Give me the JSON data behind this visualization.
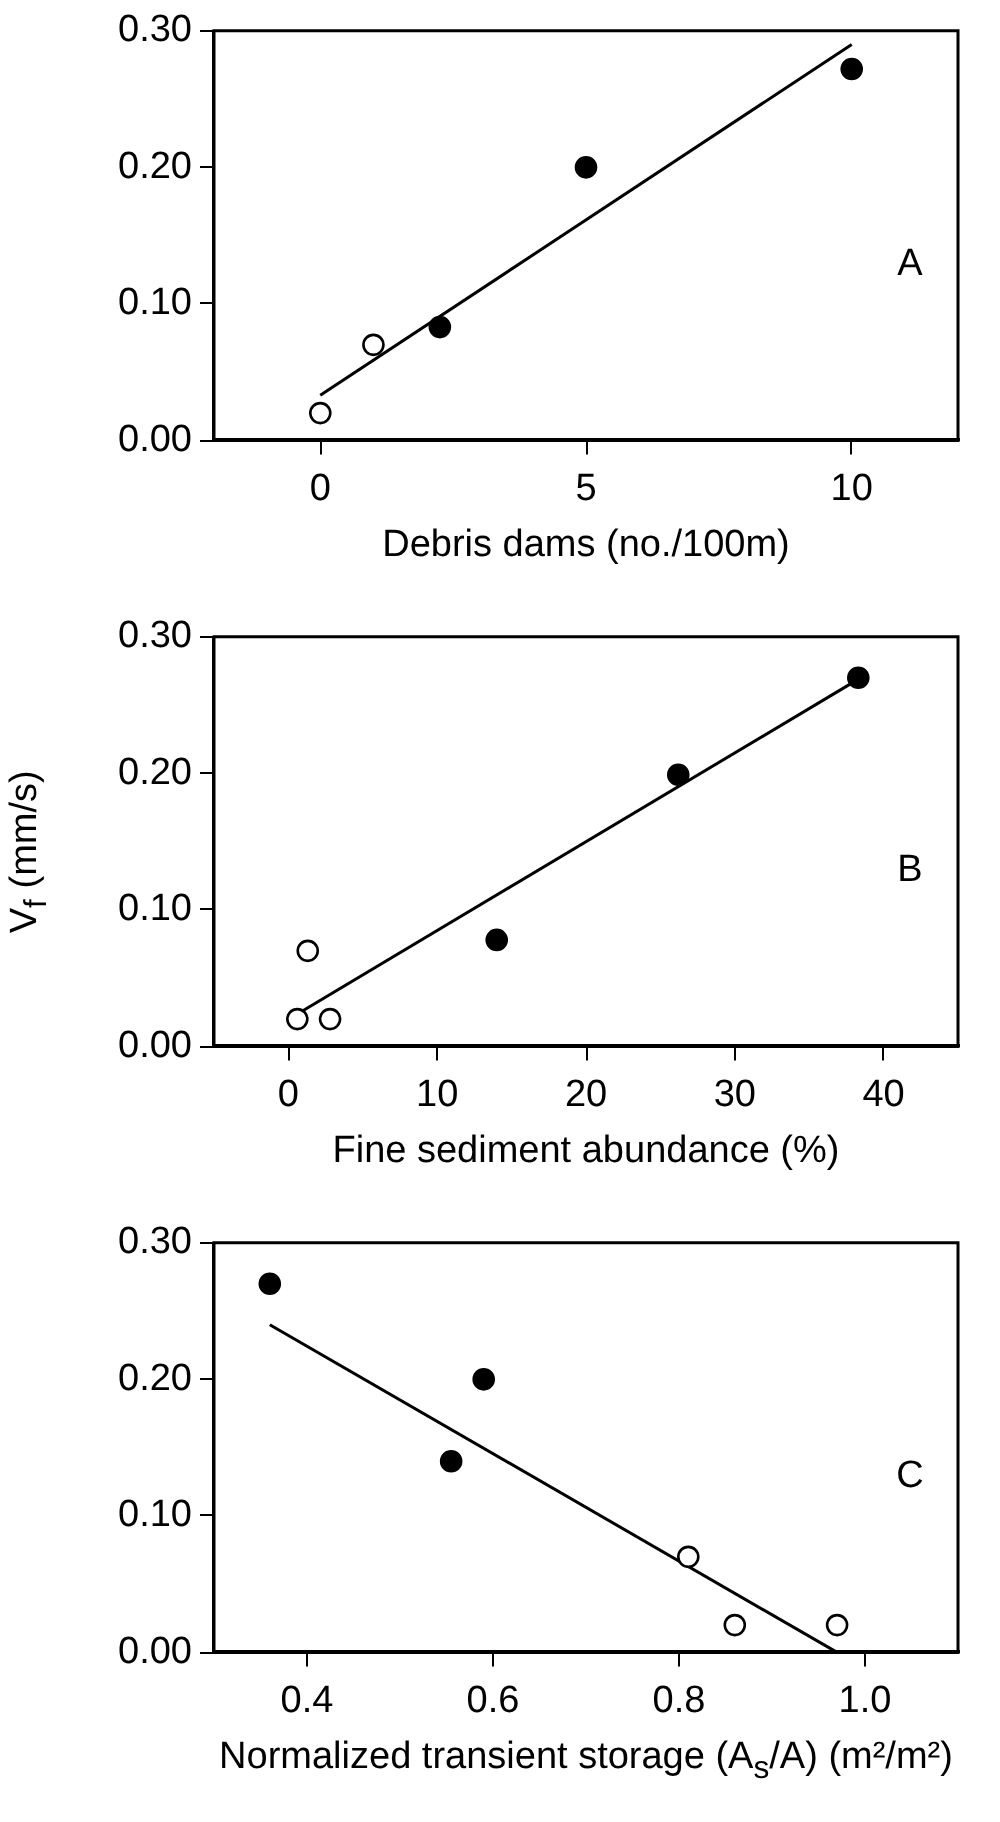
{
  "chart_data": [
    {
      "type": "scatter",
      "xlabel": "Debris dams  (no./100m)",
      "annotations": [
        "A"
      ],
      "xlim": [
        -2,
        12
      ],
      "xticks": [
        0,
        5,
        10
      ],
      "ylim": [
        0,
        0.3
      ],
      "yticks": [
        {
          "value": 0,
          "label": "0.00"
        },
        {
          "value": 0.1,
          "label": "0.10"
        },
        {
          "value": 0.2,
          "label": "0.20"
        },
        {
          "value": 0.3,
          "label": "0.30"
        }
      ],
      "grid": false,
      "legend": false,
      "series": [
        {
          "color": "#000000",
          "marker": "circle",
          "x": [
            2.25,
            5,
            10
          ],
          "values": [
            0.083,
            0.2,
            0.272
          ]
        },
        {
          "color": "#ffffff",
          "marker": "circle",
          "x": [
            0,
            1
          ],
          "values": [
            0.02,
            0.07
          ]
        },
        {
          "type": "line",
          "color": "#000000",
          "marker": "none",
          "x": [
            0,
            10
          ],
          "values": [
            0.033,
            0.29
          ]
        }
      ]
    },
    {
      "type": "scatter",
      "xlabel": "Fine sediment abundance (%)",
      "ylabel": "V$_{f}$ (mm/s)",
      "annotations": [
        "B"
      ],
      "xlim": [
        -5,
        45
      ],
      "xticks": [
        0,
        10,
        20,
        30,
        40
      ],
      "ylim": [
        0,
        0.3
      ],
      "yticks": [
        {
          "value": 0,
          "label": "0.00"
        },
        {
          "value": 0.1,
          "label": "0.10"
        },
        {
          "value": 0.2,
          "label": "0.20"
        },
        {
          "value": 0.3,
          "label": "0.30"
        }
      ],
      "grid": false,
      "legend": false,
      "series": [
        {
          "color": "#000000",
          "marker": "circle",
          "x": [
            14,
            26.2,
            38.3
          ],
          "values": [
            0.078,
            0.199,
            0.27
          ]
        },
        {
          "color": "#ffffff",
          "marker": "circle",
          "x": [
            0.6,
            1.3,
            2.8
          ],
          "values": [
            0.02,
            0.07,
            0.02
          ]
        },
        {
          "type": "line",
          "color": "#000000",
          "marker": "none",
          "x": [
            0.8,
            38
          ],
          "values": [
            0.025,
            0.267
          ]
        }
      ]
    },
    {
      "type": "scatter",
      "xlabel": "Normalized  transient storage (A$_{s}$/A) (m²/m²)",
      "annotations": [
        "C"
      ],
      "xlim": [
        0.3,
        1.1
      ],
      "xticks": [
        0.4,
        0.6,
        0.8,
        {
          "value": 1.0,
          "label": "1.0"
        }
      ],
      "ylim": [
        0,
        0.3
      ],
      "yticks": [
        {
          "value": 0,
          "label": "0.00"
        },
        {
          "value": 0.1,
          "label": "0.10"
        },
        {
          "value": 0.2,
          "label": "0.20"
        },
        {
          "value": 0.3,
          "label": "0.30"
        }
      ],
      "grid": false,
      "legend": false,
      "series": [
        {
          "color": "#000000",
          "marker": "circle",
          "x": [
            0.36,
            0.555,
            0.59
          ],
          "values": [
            0.27,
            0.14,
            0.2
          ]
        },
        {
          "color": "#ffffff",
          "marker": "circle",
          "x": [
            0.81,
            0.86,
            0.97
          ],
          "values": [
            0.07,
            0.02,
            0.02
          ]
        },
        {
          "type": "line",
          "color": "#000000",
          "marker": "none",
          "x": [
            0.36,
            0.97
          ],
          "values": [
            0.24,
            0.0
          ]
        }
      ]
    }
  ]
}
